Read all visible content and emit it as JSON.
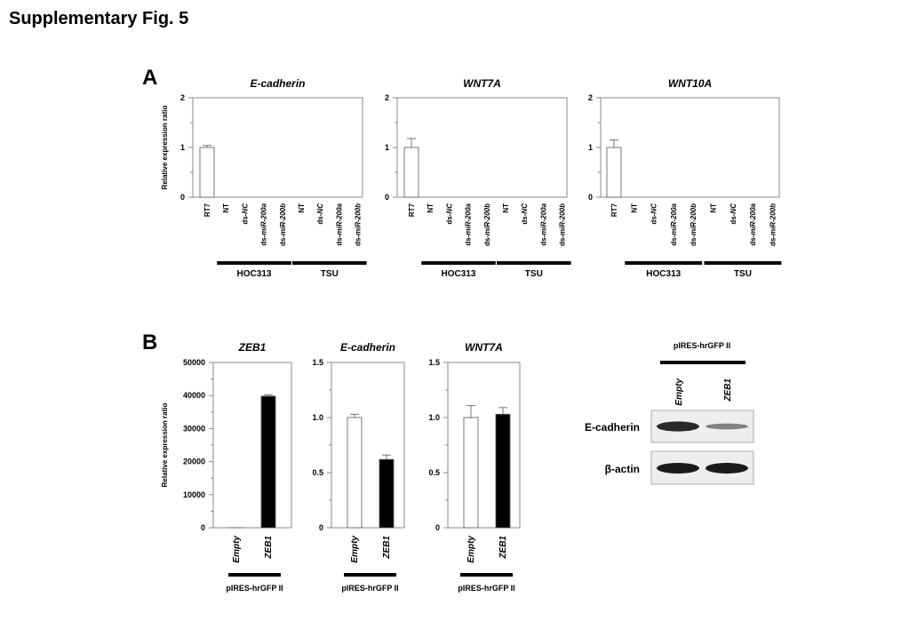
{
  "figure_title": "Supplementary Fig. 5",
  "panels": {
    "a_label": "A",
    "b_label": "B"
  },
  "colors": {
    "empty_bar": "#ffffff",
    "filled_bar": "#000000",
    "axis": "#888888",
    "group_bar": "#000000",
    "blot_bg": "#eeeeee",
    "blot_band": "#1a1a1a"
  },
  "chart_data": [
    {
      "type": "bar",
      "title": "E-cadherin",
      "ylabel": "Relative expression ratio",
      "ylim": [
        0,
        2
      ],
      "yticks": [
        "0",
        "1",
        "2"
      ],
      "categories": [
        "RT7",
        "NT",
        "ds-NC",
        "ds-miR-200a",
        "ds-miR-200b",
        "NT",
        "ds-NC",
        "ds-miR-200a",
        "ds-miR-200b"
      ],
      "values": [
        1.0,
        0,
        0,
        0,
        0,
        0,
        0,
        0,
        0
      ],
      "errors": [
        0.04,
        0,
        0,
        0,
        0,
        0,
        0,
        0,
        0
      ],
      "groups": [
        {
          "name": "HOC313",
          "from": 1,
          "to": 4
        },
        {
          "name": "TSU",
          "from": 5,
          "to": 8
        }
      ]
    },
    {
      "type": "bar",
      "title": "WNT7A",
      "ylabel": "",
      "ylim": [
        0,
        2
      ],
      "yticks": [
        "0",
        "1",
        "2"
      ],
      "categories": [
        "RT7",
        "NT",
        "ds-NC",
        "ds-miR-200a",
        "ds-miR-200b",
        "NT",
        "ds-NC",
        "ds-miR-200a",
        "ds-miR-200b"
      ],
      "values": [
        1.0,
        0,
        0,
        0,
        0,
        0,
        0,
        0,
        0
      ],
      "errors": [
        0.18,
        0,
        0,
        0,
        0,
        0,
        0,
        0,
        0
      ],
      "groups": [
        {
          "name": "HOC313",
          "from": 1,
          "to": 4
        },
        {
          "name": "TSU",
          "from": 5,
          "to": 8
        }
      ]
    },
    {
      "type": "bar",
      "title": "WNT10A",
      "ylabel": "",
      "ylim": [
        0,
        2
      ],
      "yticks": [
        "0",
        "1",
        "2"
      ],
      "categories": [
        "RT7",
        "NT",
        "ds-NC",
        "ds-miR-200a",
        "ds-miR-200b",
        "NT",
        "ds-NC",
        "ds-miR-200a",
        "ds-miR-200b"
      ],
      "values": [
        1.0,
        0,
        0,
        0,
        0,
        0,
        0,
        0,
        0
      ],
      "errors": [
        0.15,
        0,
        0,
        0,
        0,
        0,
        0,
        0,
        0
      ],
      "groups": [
        {
          "name": "HOC313",
          "from": 1,
          "to": 4
        },
        {
          "name": "TSU",
          "from": 5,
          "to": 8
        }
      ]
    },
    {
      "type": "bar",
      "title": "ZEB1",
      "ylabel": "Relative expression ratio",
      "ylim": [
        0,
        50000
      ],
      "yticks": [
        "0",
        "10000",
        "20000",
        "30000",
        "40000",
        "50000"
      ],
      "categories": [
        "Empty",
        "ZEB1"
      ],
      "values": [
        1,
        39800
      ],
      "errors": [
        0,
        400
      ],
      "groups": [
        {
          "name": "pIRES-hrGFP II",
          "from": 0,
          "to": 1
        }
      ]
    },
    {
      "type": "bar",
      "title": "E-cadherin",
      "ylabel": "",
      "ylim": [
        0,
        1.5
      ],
      "yticks": [
        "0",
        "0.5",
        "1.0",
        "1.5"
      ],
      "categories": [
        "Empty",
        "ZEB1"
      ],
      "values": [
        1.0,
        0.62
      ],
      "errors": [
        0.03,
        0.04
      ],
      "groups": [
        {
          "name": "pIRES-hrGFP II",
          "from": 0,
          "to": 1
        }
      ]
    },
    {
      "type": "bar",
      "title": "WNT7A",
      "ylabel": "",
      "ylim": [
        0,
        1.5
      ],
      "yticks": [
        "0",
        "0.5",
        "1.0",
        "1.5"
      ],
      "categories": [
        "Empty",
        "ZEB1"
      ],
      "values": [
        1.0,
        1.03
      ],
      "errors": [
        0.11,
        0.06
      ],
      "groups": [
        {
          "name": "pIRES-hrGFP II",
          "from": 0,
          "to": 1
        }
      ]
    }
  ],
  "western_blot": {
    "header": "pIRES-hrGFP II",
    "lanes": [
      "Empty",
      "ZEB1"
    ],
    "rows": [
      {
        "label": "E-cadherin",
        "intensities": [
          0.9,
          0.35
        ]
      },
      {
        "label": "β-actin",
        "intensities": [
          1.0,
          1.0
        ]
      }
    ]
  }
}
